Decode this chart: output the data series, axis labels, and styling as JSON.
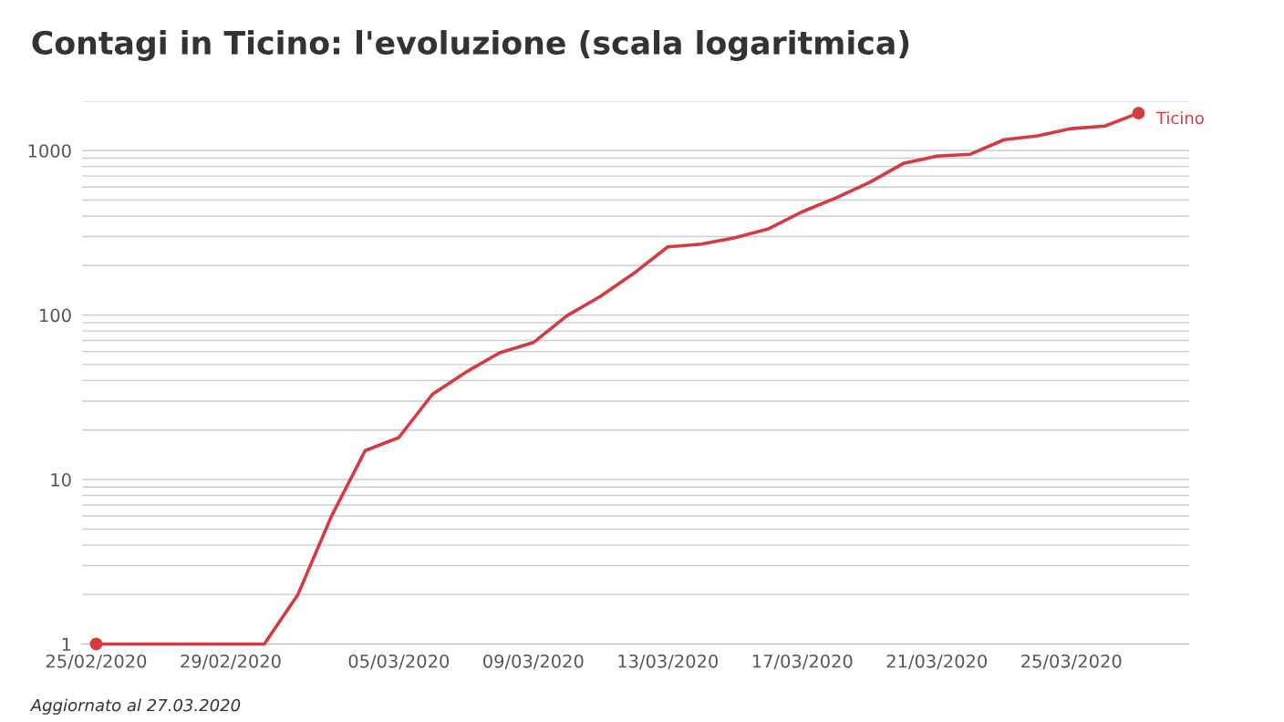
{
  "chart_data": {
    "type": "line",
    "title": "Contagi in Ticino: l'evoluzione (scala logaritmica)",
    "x": [
      "2020-02-25",
      "2020-02-26",
      "2020-02-27",
      "2020-02-28",
      "2020-02-29",
      "2020-03-01",
      "2020-03-02",
      "2020-03-03",
      "2020-03-04",
      "2020-03-05",
      "2020-03-06",
      "2020-03-07",
      "2020-03-08",
      "2020-03-09",
      "2020-03-10",
      "2020-03-11",
      "2020-03-12",
      "2020-03-13",
      "2020-03-14",
      "2020-03-15",
      "2020-03-16",
      "2020-03-17",
      "2020-03-18",
      "2020-03-19",
      "2020-03-20",
      "2020-03-21",
      "2020-03-22",
      "2020-03-23",
      "2020-03-24",
      "2020-03-25",
      "2020-03-26",
      "2020-03-27"
    ],
    "series": [
      {
        "name": "Ticino",
        "color": "#d63a3f",
        "values": [
          1,
          1,
          1,
          1,
          1,
          1,
          2,
          6,
          15,
          18,
          33,
          45,
          59,
          68,
          99,
          130,
          180,
          260,
          270,
          295,
          335,
          425,
          515,
          640,
          835,
          925,
          950,
          1165,
          1230,
          1360,
          1410,
          1690
        ]
      }
    ],
    "log": "y",
    "ylim": [
      1,
      2000
    ],
    "yticks": [
      1,
      {
        "value": 2,
        "label": null
      },
      {
        "value": 3,
        "label": null
      },
      {
        "value": 4,
        "label": null
      },
      {
        "value": 5,
        "label": null
      },
      {
        "value": 6,
        "label": null
      },
      {
        "value": 7,
        "label": null
      },
      {
        "value": 8,
        "label": null
      },
      {
        "value": 9,
        "label": null
      },
      10,
      {
        "value": 20,
        "label": null
      },
      {
        "value": 30,
        "label": null
      },
      {
        "value": 40,
        "label": null
      },
      {
        "value": 50,
        "label": null
      },
      {
        "value": 60,
        "label": null
      },
      {
        "value": 70,
        "label": null
      },
      {
        "value": 80,
        "label": null
      },
      {
        "value": 90,
        "label": null
      },
      100,
      {
        "value": 200,
        "label": null
      },
      {
        "value": 300,
        "label": null
      },
      {
        "value": 400,
        "label": null
      },
      {
        "value": 500,
        "label": null
      },
      {
        "value": 600,
        "label": null
      },
      {
        "value": 700,
        "label": null
      },
      {
        "value": 800,
        "label": null
      },
      {
        "value": 900,
        "label": null
      },
      1000,
      {
        "value": 2000,
        "label": null
      }
    ],
    "xlim": [
      "2020-02-24T14:00",
      "2020-03-28T12:00"
    ],
    "xticks": [
      {
        "value": "2020-02-25",
        "label": "25/02/2020"
      },
      {
        "value": "2020-02-29",
        "label": "29/02/2020"
      },
      {
        "value": "2020-03-05",
        "label": "05/03/2020"
      },
      {
        "value": "2020-03-09",
        "label": "09/03/2020"
      },
      {
        "value": "2020-03-13",
        "label": "13/03/2020"
      },
      {
        "value": "2020-03-17",
        "label": "17/03/2020"
      },
      {
        "value": "2020-03-21",
        "label": "21/03/2020"
      },
      {
        "value": "2020-03-25",
        "label": "25/03/2020"
      }
    ],
    "grid": "y",
    "line_style": "solid",
    "annotations": [
      "Aggiornato al 27.03.2020"
    ]
  }
}
